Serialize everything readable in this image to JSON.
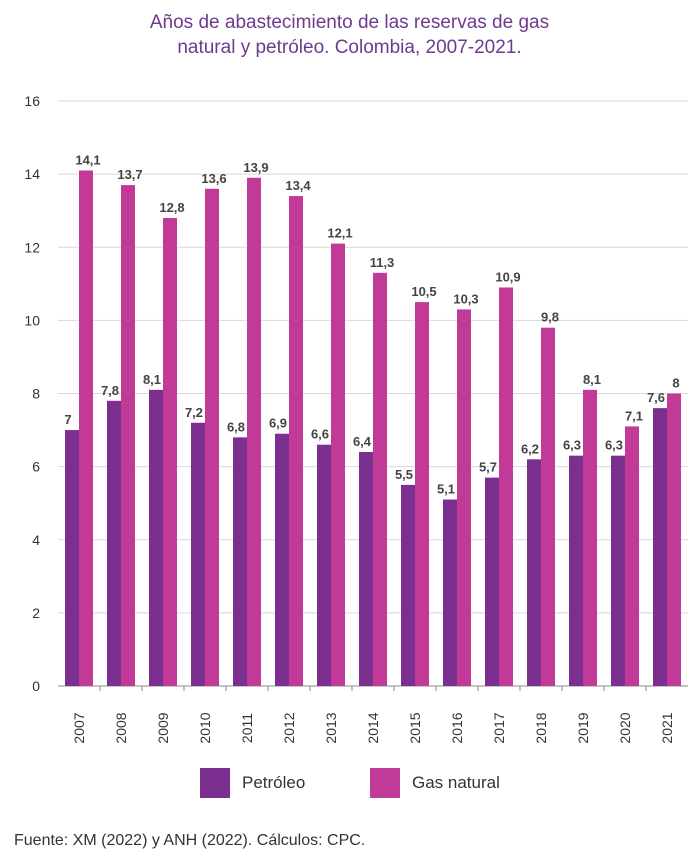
{
  "title_line1": "Años de abastecimiento de las reservas de gas",
  "title_line2": "natural y petróleo. Colombia, 2007-2021.",
  "source": "Fuente: XM (2022) y ANH (2022). Cálculos: CPC.",
  "colors": {
    "petroleo": "#7b2f8e",
    "gas": "#c23a97",
    "grid": "#d8d8d8",
    "axis": "#888888"
  },
  "chart_data": {
    "type": "bar",
    "categories": [
      "2007",
      "2008",
      "2009",
      "2010",
      "2011",
      "2012",
      "2013",
      "2014",
      "2015",
      "2016",
      "2017",
      "2018",
      "2019",
      "2020",
      "2021"
    ],
    "series": [
      {
        "name": "Petróleo",
        "values": [
          7,
          7.8,
          8.1,
          7.2,
          6.8,
          6.9,
          6.6,
          6.4,
          5.5,
          5.1,
          5.7,
          6.2,
          6.3,
          6.3,
          7.6
        ],
        "labels": [
          "7",
          "7,8",
          "8,1",
          "7,2",
          "6,8",
          "6,9",
          "6,6",
          "6,4",
          "5,5",
          "5,1",
          "5,7",
          "6,2",
          "6,3",
          "6,3",
          "7,6"
        ]
      },
      {
        "name": "Gas natural",
        "values": [
          14.1,
          13.7,
          12.8,
          13.6,
          13.9,
          13.4,
          12.1,
          11.3,
          10.5,
          10.3,
          10.9,
          9.8,
          8.1,
          7.1,
          8
        ],
        "labels": [
          "14,1",
          "13,7",
          "12,8",
          "13,6",
          "13,9",
          "13,4",
          "12,1",
          "11,3",
          "10,5",
          "10,3",
          "10,9",
          "9,8",
          "8,1",
          "7,1",
          "8"
        ]
      }
    ],
    "yticks": [
      "0",
      "2",
      "4",
      "6",
      "8",
      "10",
      "12",
      "14",
      "16"
    ],
    "ylim": [
      0,
      16
    ],
    "grid": true,
    "legend": "bottom"
  }
}
